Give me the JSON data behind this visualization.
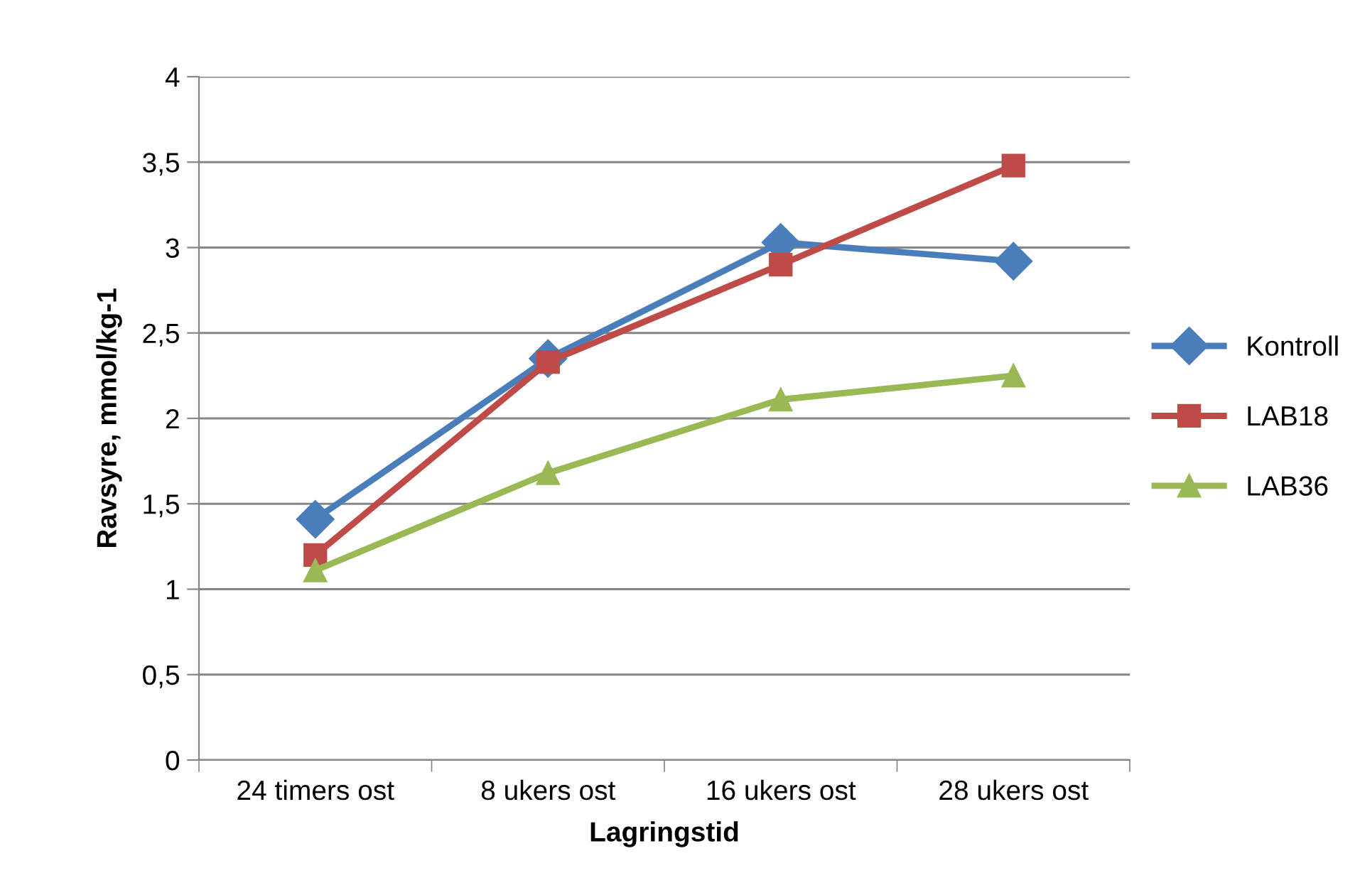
{
  "chart_data": {
    "type": "line",
    "xlabel": "Lagringstid",
    "ylabel": "Ravsyre, mmol/kg-1",
    "categories": [
      "24 timers ost",
      "8 ukers ost",
      "16 ukers ost",
      "28 ukers ost"
    ],
    "series": [
      {
        "name": "Kontroll",
        "color": "#4a7ebb",
        "marker": "diamond",
        "values": [
          1.41,
          2.35,
          3.03,
          2.92
        ]
      },
      {
        "name": "LAB18",
        "color": "#be4b48",
        "marker": "square",
        "values": [
          1.2,
          2.33,
          2.9,
          3.48
        ]
      },
      {
        "name": "LAB36",
        "color": "#98b954",
        "marker": "triangle",
        "values": [
          1.11,
          1.68,
          2.11,
          2.25
        ]
      }
    ],
    "ylim": [
      0,
      4
    ],
    "yticks": [
      0,
      {
        "value": 0.5,
        "label": "0,5"
      },
      1,
      {
        "value": 1.5,
        "label": "1,5"
      },
      2,
      {
        "value": 2.5,
        "label": "2,5"
      },
      3,
      {
        "value": 3.5,
        "label": "3,5"
      },
      4
    ],
    "grid": "y",
    "legend": "right",
    "line_style": "solid"
  }
}
